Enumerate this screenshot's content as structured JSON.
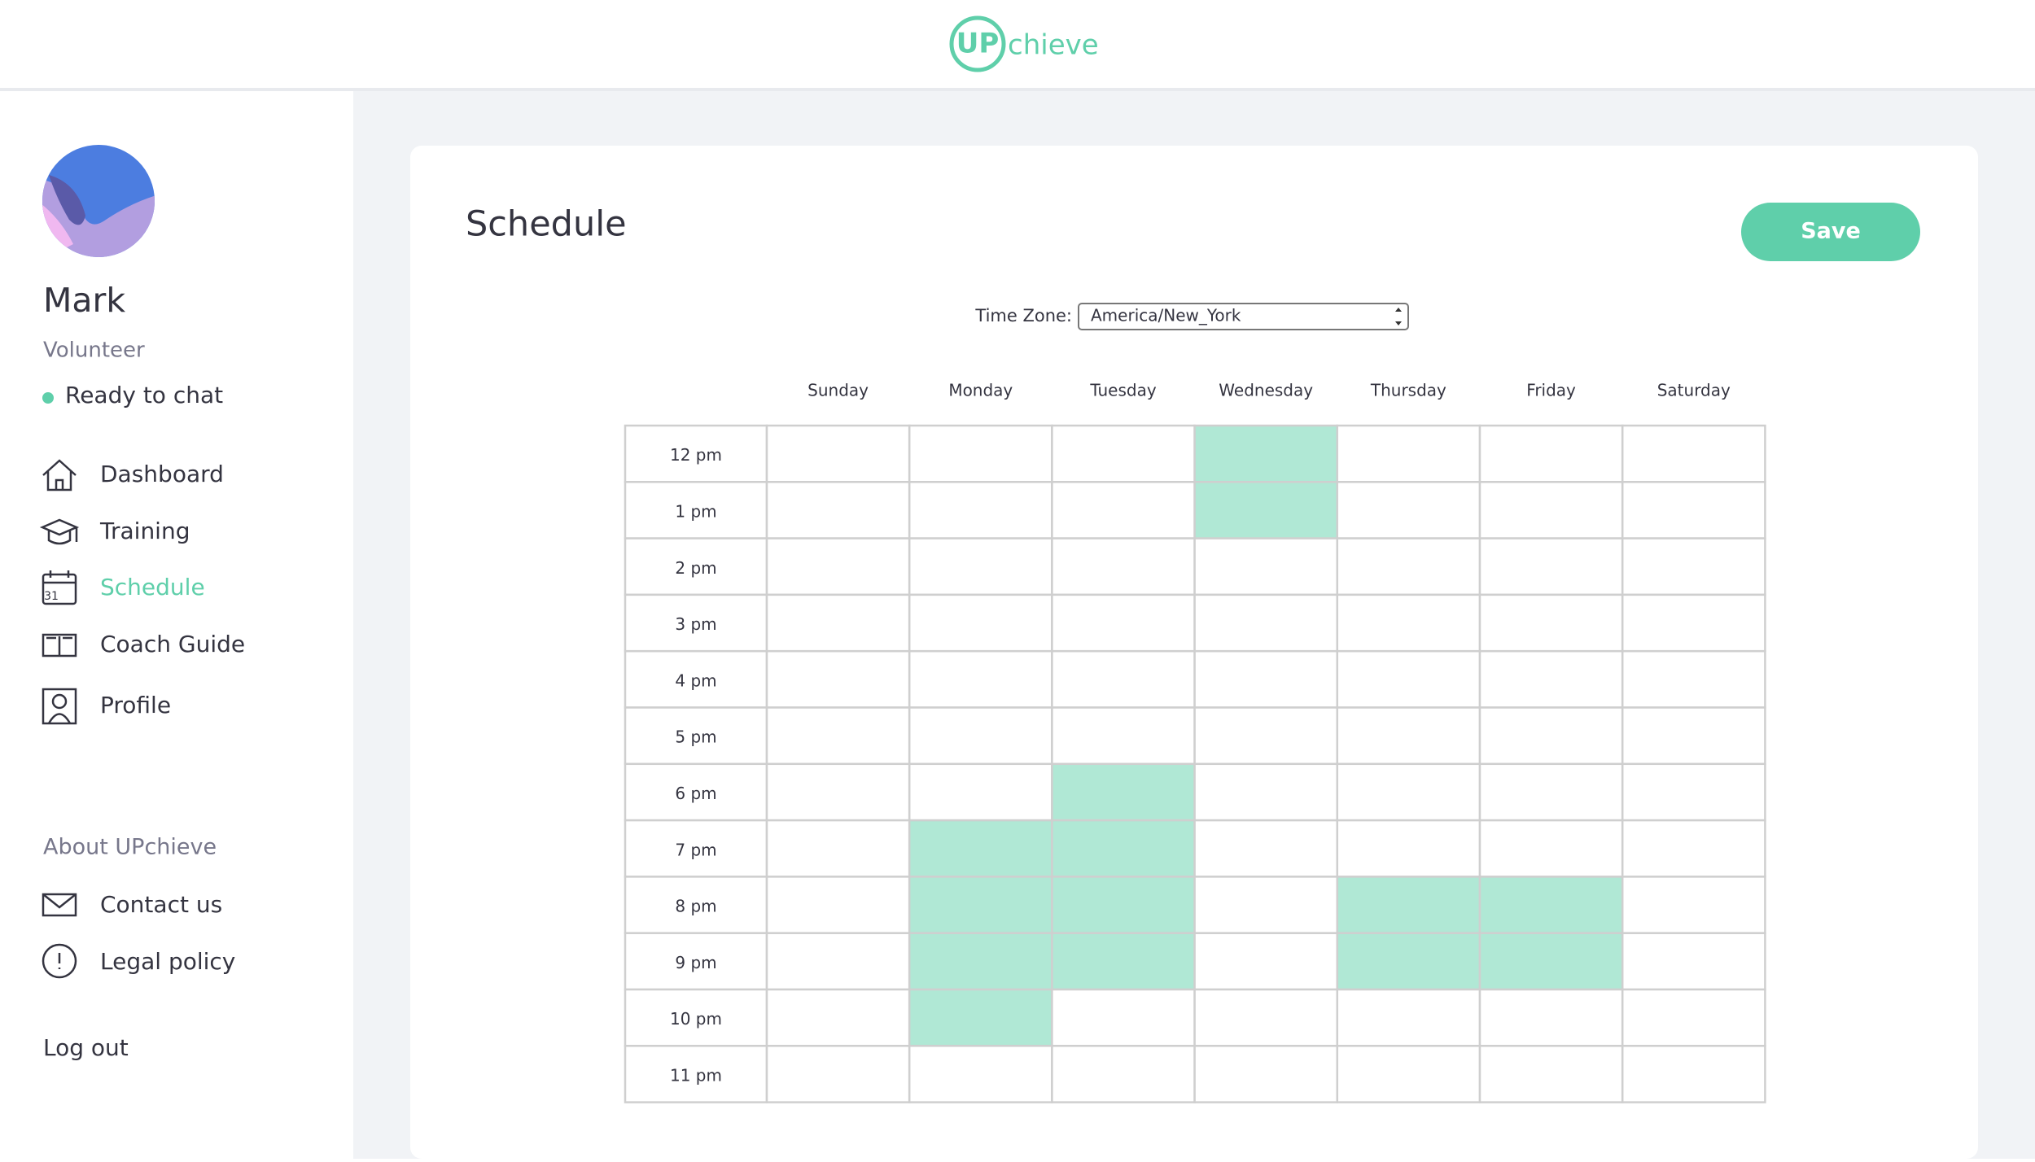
{
  "header": {
    "logo_mark": "UP",
    "logo_text": "chieve"
  },
  "sidebar": {
    "name": "Mark",
    "role": "Volunteer",
    "status": "Ready to chat",
    "nav": [
      "Dashboard",
      "Training",
      "Schedule",
      "Coach Guide",
      "Profile"
    ],
    "about_title": "About UPchieve",
    "about_links": [
      "Contact us",
      "Legal policy"
    ],
    "logout": "Log out"
  },
  "main": {
    "title": "Schedule",
    "save_button": "Save",
    "timezone_label": "Time Zone:",
    "timezone_value": "America/New_York",
    "days": [
      "Sunday",
      "Monday",
      "Tuesday",
      "Wednesday",
      "Thursday",
      "Friday",
      "Saturday"
    ],
    "hours": [
      "12 pm",
      "1 pm",
      "2 pm",
      "3 pm",
      "4 pm",
      "5 pm",
      "6 pm",
      "7 pm",
      "8 pm",
      "9 pm",
      "10 pm",
      "11 pm"
    ],
    "selected": [
      [
        false,
        false,
        false,
        true,
        false,
        false,
        false
      ],
      [
        false,
        false,
        false,
        true,
        false,
        false,
        false
      ],
      [
        false,
        false,
        false,
        false,
        false,
        false,
        false
      ],
      [
        false,
        false,
        false,
        false,
        false,
        false,
        false
      ],
      [
        false,
        false,
        false,
        false,
        false,
        false,
        false
      ],
      [
        false,
        false,
        false,
        false,
        false,
        false,
        false
      ],
      [
        false,
        false,
        true,
        false,
        false,
        false,
        false
      ],
      [
        false,
        true,
        true,
        false,
        false,
        false,
        false
      ],
      [
        false,
        true,
        true,
        false,
        true,
        true,
        false
      ],
      [
        false,
        true,
        true,
        false,
        true,
        true,
        false
      ],
      [
        false,
        true,
        false,
        false,
        false,
        false,
        false
      ],
      [
        false,
        false,
        false,
        false,
        false,
        false,
        false
      ]
    ]
  }
}
